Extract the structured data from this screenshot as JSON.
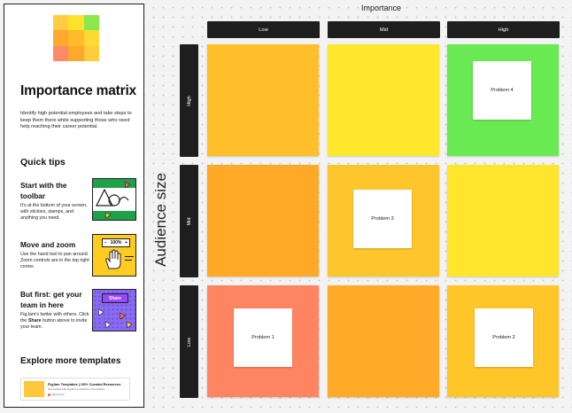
{
  "panel": {
    "title": "Importance matrix",
    "description": "Identify high potential employees and take steps to keep them there while supporting those who need help reaching their career potential.",
    "thumbnail_colors": [
      "#ffcc44",
      "#ffe22b",
      "#8ae84e",
      "#ffa82e",
      "#ffbb2a",
      "#ffd934",
      "#ff8a6a",
      "#ffa82e",
      "#ffcc3a"
    ],
    "quick_tips_title": "Quick tips",
    "tips": [
      {
        "title": "Start with the toolbar",
        "text": "It's at the bottom of your screen, with stickies, stamps, and anything you need.",
        "icon": "toolbar-illustration"
      },
      {
        "title": "Move and zoom",
        "text": "Use the hand tool to pan around. Zoom controls are in the top right corner.",
        "icon": "hand-zoom-illustration",
        "zoom_label": "100%",
        "zoom_minus": "−",
        "zoom_plus": "+"
      },
      {
        "title": "But first: get your team in here",
        "text_before": "FigJam's better with others. Click the ",
        "text_bold": "Share",
        "text_after": " button above to invite your team.",
        "icon": "share-illustration",
        "share_label": "Share"
      }
    ],
    "explore_title": "Explore more templates",
    "card": {
      "title": "FigJam Templates | 100+ Curated Resources",
      "subtitle": "Get started with FigJam's collection of templates",
      "site": "figma.com"
    }
  },
  "matrix": {
    "x_axis_title": "Importance",
    "y_axis_title": "Audience size",
    "columns": [
      "Low",
      "Mid",
      "High"
    ],
    "rows": [
      "High",
      "Mid",
      "Low"
    ],
    "cell_colors": [
      [
        "#ffbf2b",
        "#ffe72c",
        "#6aea52"
      ],
      [
        "#ffa927",
        "#ffc52c",
        "#ffe62c"
      ],
      [
        "#ff8462",
        "#ffaa28",
        "#ffc62a"
      ]
    ],
    "notes": {
      "high_high": "Problem 4",
      "mid_mid": "Problem 3",
      "low_low": "Problem 1",
      "low_high": "Problem 2"
    }
  }
}
